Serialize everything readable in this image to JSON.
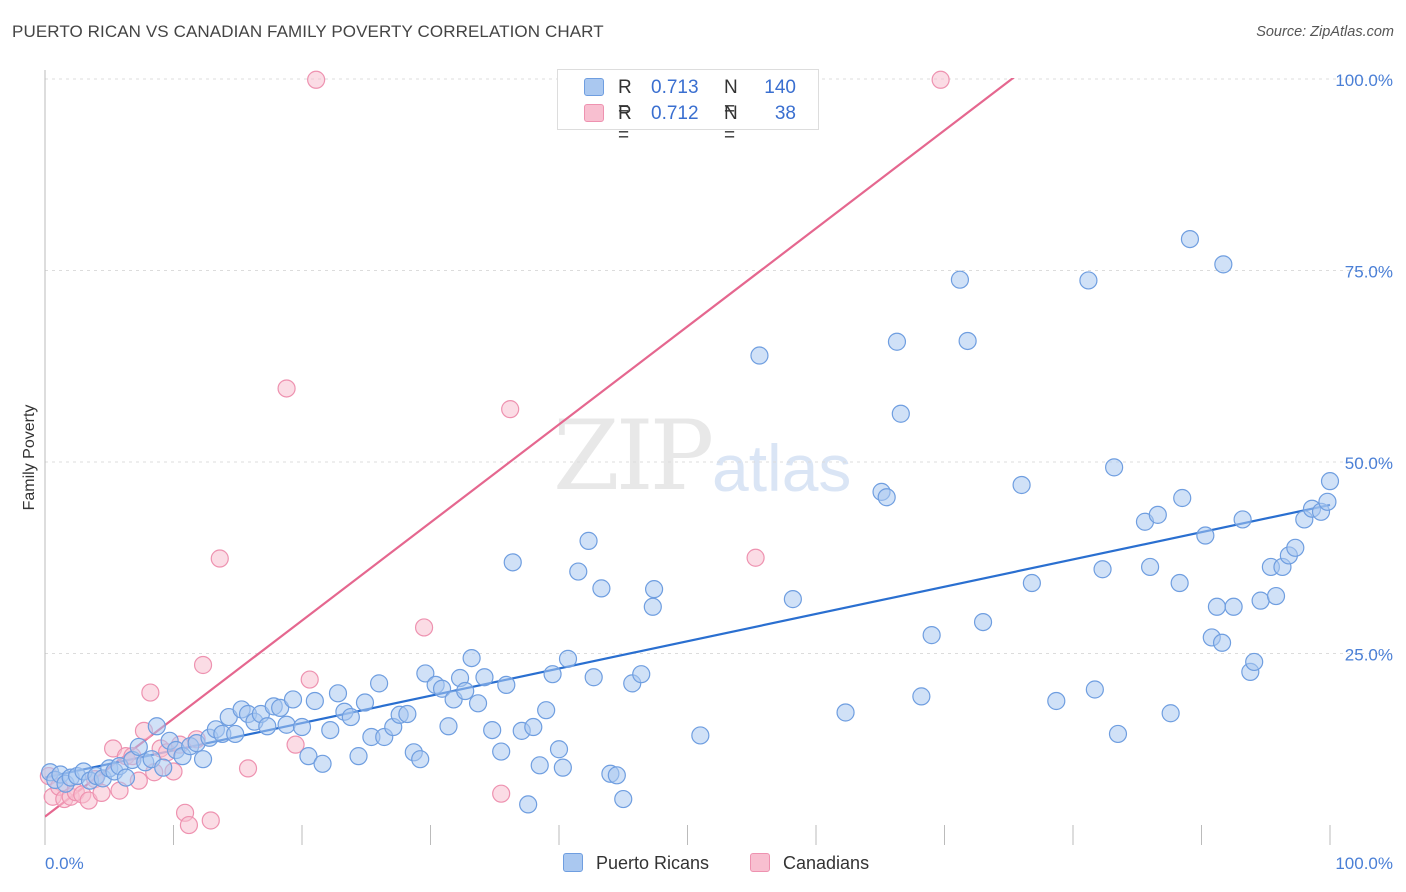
{
  "title": "PUERTO RICAN VS CANADIAN FAMILY POVERTY CORRELATION CHART",
  "source": "Source: ZipAtlas.com",
  "watermark": {
    "zip": "ZIP",
    "atlas": "atlas"
  },
  "legend_top": {
    "rows": [
      {
        "r_label": "R =",
        "r_value": "0.713",
        "n_label": "N =",
        "n_value": "140"
      },
      {
        "r_label": "R =",
        "r_value": "0.712",
        "n_label": "N =",
        "n_value": "38"
      }
    ]
  },
  "legend_bottom": [
    {
      "label": "Puerto Ricans"
    },
    {
      "label": "Canadians"
    }
  ],
  "colors": {
    "blue_fill": "#aac8f0",
    "blue_stroke": "#6f9ee0",
    "blue_line": "#2a6fd0",
    "pink_fill": "#f8bfd0",
    "pink_stroke": "#ee92b0",
    "pink_line": "#e5678f",
    "grid": "#dcdcdc",
    "axis_text": "#4a7fd6"
  },
  "chart_data": {
    "type": "scatter",
    "title": "PUERTO RICAN VS CANADIAN FAMILY POVERTY CORRELATION CHART",
    "xlabel": "",
    "ylabel": "Family Poverty",
    "xlim": [
      0,
      100
    ],
    "ylim": [
      0,
      103
    ],
    "x_tick_labels": [
      "0.0%",
      "100.0%"
    ],
    "y_tick_labels": [
      "25.0%",
      "50.0%",
      "75.0%",
      "100.0%"
    ],
    "y_ticks": [
      25,
      50,
      75,
      100
    ],
    "series": [
      {
        "name": "Puerto Ricans",
        "r": 0.713,
        "n": 140,
        "trend": {
          "x0": 0,
          "y0": 8.8,
          "x1": 100,
          "y1": 44.4
        },
        "points": [
          [
            0.4,
            9.5
          ],
          [
            0.8,
            8.5
          ],
          [
            1.2,
            9.2
          ],
          [
            1.6,
            8.0
          ],
          [
            2.0,
            8.8
          ],
          [
            2.5,
            9.0
          ],
          [
            3.0,
            9.6
          ],
          [
            3.5,
            8.4
          ],
          [
            4.0,
            9.0
          ],
          [
            4.5,
            8.7
          ],
          [
            5.0,
            10.0
          ],
          [
            5.4,
            9.6
          ],
          [
            5.8,
            10.3
          ],
          [
            6.3,
            8.8
          ],
          [
            6.8,
            11.1
          ],
          [
            7.3,
            12.8
          ],
          [
            7.8,
            10.8
          ],
          [
            8.3,
            11.2
          ],
          [
            8.7,
            15.5
          ],
          [
            9.2,
            10.1
          ],
          [
            9.7,
            13.6
          ],
          [
            10.2,
            12.4
          ],
          [
            10.7,
            11.6
          ],
          [
            11.3,
            12.9
          ],
          [
            11.8,
            13.3
          ],
          [
            12.3,
            11.2
          ],
          [
            12.8,
            14.0
          ],
          [
            13.3,
            15.1
          ],
          [
            13.8,
            14.5
          ],
          [
            14.3,
            16.7
          ],
          [
            14.8,
            14.5
          ],
          [
            15.3,
            17.7
          ],
          [
            15.8,
            17.1
          ],
          [
            16.3,
            16.1
          ],
          [
            16.8,
            17.1
          ],
          [
            17.3,
            15.5
          ],
          [
            17.8,
            18.1
          ],
          [
            18.3,
            17.9
          ],
          [
            18.8,
            15.7
          ],
          [
            19.3,
            19.0
          ],
          [
            20.0,
            15.4
          ],
          [
            20.5,
            11.6
          ],
          [
            21.0,
            18.8
          ],
          [
            21.6,
            10.6
          ],
          [
            22.2,
            15.0
          ],
          [
            22.8,
            19.8
          ],
          [
            23.3,
            17.4
          ],
          [
            23.8,
            16.7
          ],
          [
            24.4,
            11.6
          ],
          [
            24.9,
            18.6
          ],
          [
            25.4,
            14.1
          ],
          [
            26.0,
            21.1
          ],
          [
            26.4,
            14.1
          ],
          [
            27.1,
            15.4
          ],
          [
            27.6,
            17.0
          ],
          [
            28.2,
            17.1
          ],
          [
            28.7,
            12.1
          ],
          [
            29.2,
            11.2
          ],
          [
            29.6,
            22.4
          ],
          [
            30.4,
            20.9
          ],
          [
            30.9,
            20.4
          ],
          [
            31.4,
            15.5
          ],
          [
            31.8,
            19.0
          ],
          [
            32.3,
            21.8
          ],
          [
            32.7,
            20.1
          ],
          [
            33.2,
            24.4
          ],
          [
            33.7,
            18.5
          ],
          [
            34.2,
            21.9
          ],
          [
            34.8,
            15.0
          ],
          [
            35.5,
            12.2
          ],
          [
            35.9,
            20.9
          ],
          [
            36.4,
            36.9
          ],
          [
            37.1,
            14.9
          ],
          [
            37.6,
            5.3
          ],
          [
            38.0,
            15.4
          ],
          [
            38.5,
            10.4
          ],
          [
            39.0,
            17.6
          ],
          [
            39.5,
            22.3
          ],
          [
            40.0,
            12.5
          ],
          [
            40.3,
            10.1
          ],
          [
            40.7,
            24.3
          ],
          [
            41.5,
            35.7
          ],
          [
            42.3,
            39.7
          ],
          [
            42.7,
            21.9
          ],
          [
            43.3,
            33.5
          ],
          [
            44.0,
            9.3
          ],
          [
            44.5,
            9.1
          ],
          [
            45.0,
            6.0
          ],
          [
            45.7,
            21.1
          ],
          [
            46.4,
            22.3
          ],
          [
            47.3,
            31.1
          ],
          [
            47.4,
            33.4
          ],
          [
            51.0,
            14.3
          ],
          [
            55.6,
            63.9
          ],
          [
            58.2,
            32.1
          ],
          [
            62.3,
            17.3
          ],
          [
            65.1,
            46.1
          ],
          [
            65.5,
            45.4
          ],
          [
            66.3,
            65.7
          ],
          [
            66.6,
            56.3
          ],
          [
            68.2,
            19.4
          ],
          [
            69.0,
            27.4
          ],
          [
            71.2,
            73.8
          ],
          [
            71.8,
            65.8
          ],
          [
            73.0,
            29.1
          ],
          [
            76.0,
            47.0
          ],
          [
            76.8,
            34.2
          ],
          [
            78.7,
            18.8
          ],
          [
            81.2,
            73.7
          ],
          [
            81.7,
            20.3
          ],
          [
            82.3,
            36.0
          ],
          [
            83.2,
            49.3
          ],
          [
            83.5,
            14.5
          ],
          [
            85.6,
            42.2
          ],
          [
            86.0,
            36.3
          ],
          [
            86.6,
            43.1
          ],
          [
            87.6,
            17.2
          ],
          [
            88.3,
            34.2
          ],
          [
            88.5,
            45.3
          ],
          [
            89.1,
            79.1
          ],
          [
            90.3,
            40.4
          ],
          [
            90.8,
            27.1
          ],
          [
            91.2,
            31.1
          ],
          [
            91.6,
            26.4
          ],
          [
            91.7,
            75.8
          ],
          [
            92.5,
            31.1
          ],
          [
            93.2,
            42.5
          ],
          [
            93.8,
            22.6
          ],
          [
            94.1,
            23.9
          ],
          [
            94.6,
            31.9
          ],
          [
            95.4,
            36.3
          ],
          [
            95.8,
            32.5
          ],
          [
            96.3,
            36.3
          ],
          [
            96.8,
            37.8
          ],
          [
            97.3,
            38.8
          ],
          [
            98.0,
            42.5
          ],
          [
            98.6,
            43.9
          ],
          [
            99.3,
            43.5
          ],
          [
            99.8,
            44.8
          ],
          [
            100.0,
            47.5
          ]
        ]
      },
      {
        "name": "Canadians",
        "r": 0.712,
        "n": 38,
        "trend": {
          "x0": 0,
          "y0": 3.7,
          "x1": 100,
          "y1": 131.7
        },
        "points": [
          [
            0.3,
            9.0
          ],
          [
            0.6,
            6.3
          ],
          [
            1.1,
            7.6
          ],
          [
            1.5,
            6.0
          ],
          [
            2.0,
            6.3
          ],
          [
            2.4,
            6.9
          ],
          [
            2.9,
            6.6
          ],
          [
            3.4,
            5.8
          ],
          [
            3.9,
            8.6
          ],
          [
            4.4,
            6.8
          ],
          [
            5.3,
            12.6
          ],
          [
            5.8,
            7.1
          ],
          [
            6.3,
            11.6
          ],
          [
            6.8,
            11.6
          ],
          [
            7.3,
            8.4
          ],
          [
            7.7,
            14.9
          ],
          [
            8.2,
            19.9
          ],
          [
            8.5,
            9.5
          ],
          [
            9.0,
            12.6
          ],
          [
            9.5,
            12.1
          ],
          [
            10.0,
            9.6
          ],
          [
            10.5,
            13.1
          ],
          [
            10.9,
            4.2
          ],
          [
            11.2,
            2.6
          ],
          [
            11.8,
            13.8
          ],
          [
            12.3,
            23.5
          ],
          [
            12.9,
            3.2
          ],
          [
            13.6,
            37.4
          ],
          [
            15.8,
            10.0
          ],
          [
            18.8,
            59.6
          ],
          [
            19.5,
            13.1
          ],
          [
            20.6,
            21.6
          ],
          [
            21.1,
            99.9
          ],
          [
            29.5,
            28.4
          ],
          [
            35.5,
            6.7
          ],
          [
            36.2,
            56.9
          ],
          [
            55.3,
            37.5
          ],
          [
            69.7,
            99.9
          ]
        ]
      }
    ]
  }
}
